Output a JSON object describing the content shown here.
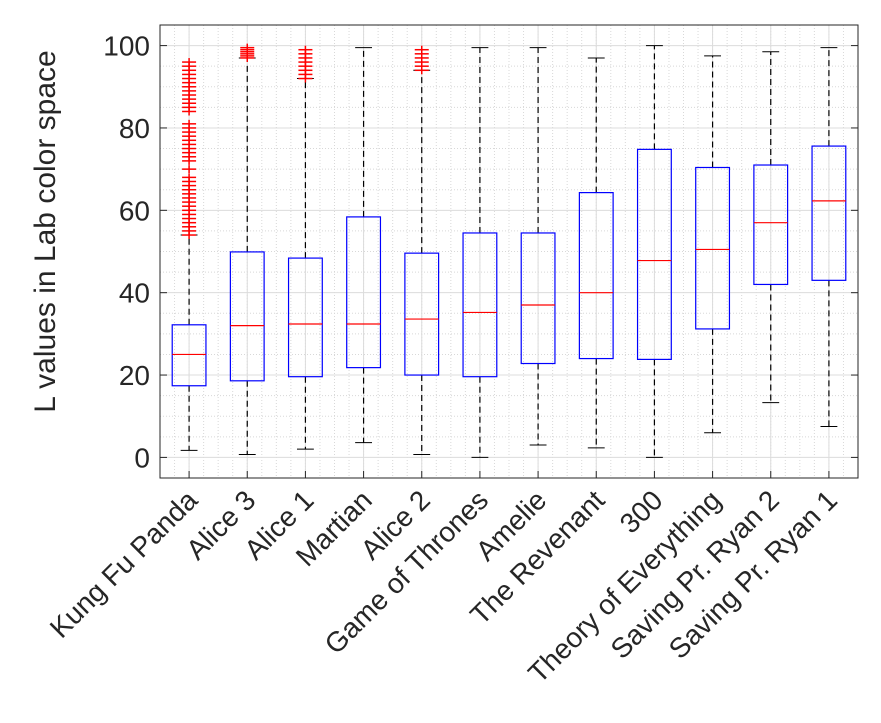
{
  "chart_data": {
    "type": "box",
    "title": "",
    "xlabel": "",
    "ylabel": "L values in Lab color space",
    "ylim": [
      -5,
      105
    ],
    "yticks": [
      0,
      20,
      40,
      60,
      80,
      100
    ],
    "grid": "major and minor",
    "categories": [
      "Kung Fu Panda",
      "Alice 3",
      "Alice 1",
      "Martian",
      "Alice 2",
      "Game of Thrones",
      "Amelie",
      "The Revenant",
      "300",
      "Theory of Everything",
      "Saving Pr. Ryan 2",
      "Saving Pr. Ryan 1"
    ],
    "series": [
      {
        "name": "Kung Fu Panda",
        "whisker_low": 1.7,
        "q1": 17.4,
        "median": 25,
        "q3": 32.2,
        "whisker_high": 54,
        "outliers": [
          54,
          55,
          56,
          57,
          58,
          59,
          60,
          61,
          62,
          63,
          64,
          65,
          66,
          67,
          68,
          70,
          72,
          73,
          74,
          75,
          76,
          77,
          78,
          79,
          80,
          81,
          84,
          85,
          86,
          87,
          88,
          89,
          90,
          91,
          92,
          93,
          94,
          95,
          96
        ]
      },
      {
        "name": "Alice 3",
        "whisker_low": 0.7,
        "q1": 18.6,
        "median": 32,
        "q3": 49.9,
        "whisker_high": 97,
        "outliers": [
          97,
          97.5,
          98,
          98.5,
          99,
          99.5
        ]
      },
      {
        "name": "Alice 1",
        "whisker_low": 2,
        "q1": 19.6,
        "median": 32.4,
        "q3": 48.4,
        "whisker_high": 92,
        "outliers": [
          92,
          93,
          94,
          95,
          96,
          97,
          98,
          99
        ]
      },
      {
        "name": "Martian",
        "whisker_low": 3.6,
        "q1": 21.8,
        "median": 32.4,
        "q3": 58.4,
        "whisker_high": 99.5,
        "outliers": []
      },
      {
        "name": "Alice 2",
        "whisker_low": 0.7,
        "q1": 20,
        "median": 33.6,
        "q3": 49.6,
        "whisker_high": 94,
        "outliers": [
          94,
          95,
          96,
          97,
          98,
          99
        ]
      },
      {
        "name": "Game of Thrones",
        "whisker_low": 0,
        "q1": 19.6,
        "median": 35.2,
        "q3": 54.5,
        "whisker_high": 99.5,
        "outliers": []
      },
      {
        "name": "Amelie",
        "whisker_low": 3,
        "q1": 22.8,
        "median": 37,
        "q3": 54.5,
        "whisker_high": 99.5,
        "outliers": []
      },
      {
        "name": "The Revenant",
        "whisker_low": 2.3,
        "q1": 24,
        "median": 40,
        "q3": 64.3,
        "whisker_high": 97,
        "outliers": []
      },
      {
        "name": "300",
        "whisker_low": 0,
        "q1": 23.8,
        "median": 47.8,
        "q3": 74.8,
        "whisker_high": 100,
        "outliers": []
      },
      {
        "name": "Theory of Everything",
        "whisker_low": 6,
        "q1": 31.2,
        "median": 50.5,
        "q3": 70.4,
        "whisker_high": 97.5,
        "outliers": []
      },
      {
        "name": "Saving Pr. Ryan 2",
        "whisker_low": 13.3,
        "q1": 42,
        "median": 57,
        "q3": 71,
        "whisker_high": 98.5,
        "outliers": []
      },
      {
        "name": "Saving Pr. Ryan 1",
        "whisker_low": 7.5,
        "q1": 43,
        "median": 62.3,
        "q3": 75.6,
        "whisker_high": 99.5,
        "outliers": []
      }
    ],
    "colors": {
      "box": "#0000ff",
      "median": "#ff0000",
      "outlier": "#ff0000",
      "whisker": "#000000"
    }
  }
}
